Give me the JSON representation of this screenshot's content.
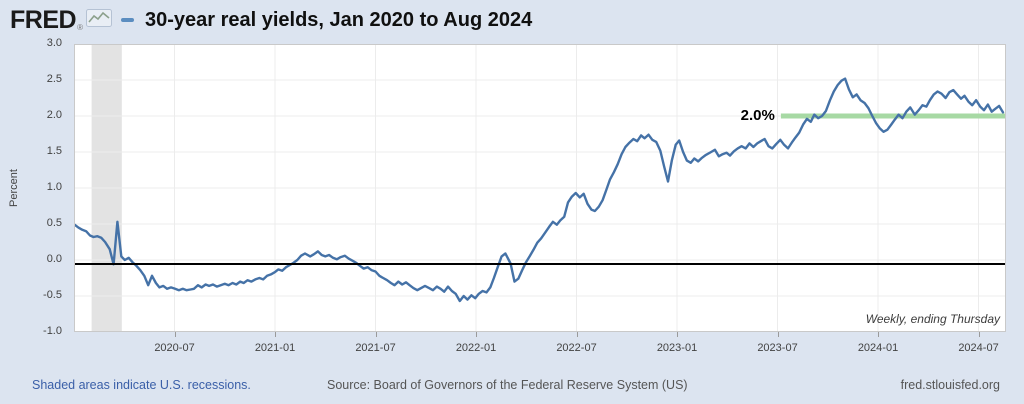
{
  "header": {
    "logo_text": "FRED",
    "logo_reg": "®",
    "legend_dash_color": "#5b8dc0"
  },
  "footer": {
    "left_link": "Shaded areas indicate U.S. recessions.",
    "source": "Source: Board of Governors of the Federal Reserve System (US)",
    "site": "fred.stlouisfed.org"
  },
  "chart_data": {
    "type": "line",
    "title": "30-year real yields, Jan 2020 to Aug 2024",
    "ylabel": "Percent",
    "note": "Weekly, ending Thursday",
    "ylim": [
      -1.0,
      3.0
    ],
    "y_ticks": [
      3.0,
      2.5,
      2.0,
      1.5,
      1.0,
      0.5,
      0.0,
      -0.5,
      -1.0
    ],
    "x_ticks": [
      "2020-07",
      "2021-01",
      "2021-07",
      "2022-01",
      "2022-07",
      "2023-01",
      "2023-07",
      "2024-01",
      "2024-07"
    ],
    "grid": true,
    "line_color": "#4572a7",
    "background_color": "#dce4f0",
    "zero_line": {
      "value": -0.055,
      "color": "#000000"
    },
    "recession_band": {
      "start_month": 1.05,
      "end_month": 2.85,
      "color": "#e3e3e3"
    },
    "annotation": {
      "label": "2.0%",
      "value": 2.0,
      "x_start_month": 42.2,
      "line_color": "#a7d9a4"
    },
    "series": [
      {
        "name": "30-year real yield",
        "points": [
          [
            "2020-01-02",
            0.49
          ],
          [
            "2020-01-09",
            0.45
          ],
          [
            "2020-01-16",
            0.42
          ],
          [
            "2020-01-23",
            0.4
          ],
          [
            "2020-01-30",
            0.34
          ],
          [
            "2020-02-06",
            0.32
          ],
          [
            "2020-02-13",
            0.33
          ],
          [
            "2020-02-20",
            0.31
          ],
          [
            "2020-02-27",
            0.25
          ],
          [
            "2020-03-05",
            0.15
          ],
          [
            "2020-03-12",
            -0.06
          ],
          [
            "2020-03-19",
            0.53
          ],
          [
            "2020-03-26",
            0.05
          ],
          [
            "2020-04-02",
            0.0
          ],
          [
            "2020-04-09",
            0.03
          ],
          [
            "2020-04-16",
            -0.03
          ],
          [
            "2020-04-23",
            -0.08
          ],
          [
            "2020-04-30",
            -0.14
          ],
          [
            "2020-05-07",
            -0.22
          ],
          [
            "2020-05-14",
            -0.35
          ],
          [
            "2020-05-21",
            -0.22
          ],
          [
            "2020-05-28",
            -0.32
          ],
          [
            "2020-06-04",
            -0.38
          ],
          [
            "2020-06-11",
            -0.36
          ],
          [
            "2020-06-18",
            -0.4
          ],
          [
            "2020-06-25",
            -0.38
          ],
          [
            "2020-07-02",
            -0.4
          ],
          [
            "2020-07-09",
            -0.42
          ],
          [
            "2020-07-16",
            -0.4
          ],
          [
            "2020-07-23",
            -0.42
          ],
          [
            "2020-07-30",
            -0.41
          ],
          [
            "2020-08-06",
            -0.4
          ],
          [
            "2020-08-13",
            -0.35
          ],
          [
            "2020-08-20",
            -0.38
          ],
          [
            "2020-08-27",
            -0.34
          ],
          [
            "2020-09-03",
            -0.36
          ],
          [
            "2020-09-10",
            -0.34
          ],
          [
            "2020-09-17",
            -0.37
          ],
          [
            "2020-09-24",
            -0.35
          ],
          [
            "2020-10-01",
            -0.33
          ],
          [
            "2020-10-08",
            -0.35
          ],
          [
            "2020-10-15",
            -0.32
          ],
          [
            "2020-10-22",
            -0.34
          ],
          [
            "2020-10-29",
            -0.3
          ],
          [
            "2020-11-05",
            -0.32
          ],
          [
            "2020-11-12",
            -0.28
          ],
          [
            "2020-11-19",
            -0.3
          ],
          [
            "2020-11-26",
            -0.27
          ],
          [
            "2020-12-03",
            -0.25
          ],
          [
            "2020-12-10",
            -0.27
          ],
          [
            "2020-12-17",
            -0.22
          ],
          [
            "2020-12-24",
            -0.2
          ],
          [
            "2020-12-31",
            -0.17
          ],
          [
            "2021-01-07",
            -0.13
          ],
          [
            "2021-01-14",
            -0.15
          ],
          [
            "2021-01-21",
            -0.1
          ],
          [
            "2021-01-28",
            -0.07
          ],
          [
            "2021-02-04",
            -0.04
          ],
          [
            "2021-02-11",
            0.0
          ],
          [
            "2021-02-18",
            0.06
          ],
          [
            "2021-02-25",
            0.09
          ],
          [
            "2021-03-04",
            0.05
          ],
          [
            "2021-03-11",
            0.08
          ],
          [
            "2021-03-18",
            0.12
          ],
          [
            "2021-03-25",
            0.07
          ],
          [
            "2021-04-01",
            0.05
          ],
          [
            "2021-04-08",
            0.07
          ],
          [
            "2021-04-15",
            0.03
          ],
          [
            "2021-04-22",
            0.01
          ],
          [
            "2021-04-29",
            0.04
          ],
          [
            "2021-05-06",
            0.06
          ],
          [
            "2021-05-13",
            0.02
          ],
          [
            "2021-05-20",
            -0.01
          ],
          [
            "2021-05-27",
            -0.04
          ],
          [
            "2021-06-03",
            -0.08
          ],
          [
            "2021-06-10",
            -0.12
          ],
          [
            "2021-06-17",
            -0.1
          ],
          [
            "2021-06-24",
            -0.14
          ],
          [
            "2021-07-01",
            -0.16
          ],
          [
            "2021-07-08",
            -0.22
          ],
          [
            "2021-07-15",
            -0.25
          ],
          [
            "2021-07-22",
            -0.28
          ],
          [
            "2021-07-29",
            -0.32
          ],
          [
            "2021-08-05",
            -0.35
          ],
          [
            "2021-08-12",
            -0.3
          ],
          [
            "2021-08-19",
            -0.34
          ],
          [
            "2021-08-26",
            -0.31
          ],
          [
            "2021-09-02",
            -0.35
          ],
          [
            "2021-09-09",
            -0.39
          ],
          [
            "2021-09-16",
            -0.42
          ],
          [
            "2021-09-23",
            -0.39
          ],
          [
            "2021-09-30",
            -0.36
          ],
          [
            "2021-10-07",
            -0.39
          ],
          [
            "2021-10-14",
            -0.42
          ],
          [
            "2021-10-21",
            -0.37
          ],
          [
            "2021-10-28",
            -0.4
          ],
          [
            "2021-11-04",
            -0.44
          ],
          [
            "2021-11-11",
            -0.37
          ],
          [
            "2021-11-18",
            -0.43
          ],
          [
            "2021-11-25",
            -0.47
          ],
          [
            "2021-12-02",
            -0.57
          ],
          [
            "2021-12-09",
            -0.5
          ],
          [
            "2021-12-16",
            -0.55
          ],
          [
            "2021-12-23",
            -0.49
          ],
          [
            "2021-12-30",
            -0.53
          ],
          [
            "2022-01-06",
            -0.47
          ],
          [
            "2022-01-13",
            -0.43
          ],
          [
            "2022-01-20",
            -0.45
          ],
          [
            "2022-01-27",
            -0.38
          ],
          [
            "2022-02-03",
            -0.25
          ],
          [
            "2022-02-10",
            -0.1
          ],
          [
            "2022-02-17",
            0.05
          ],
          [
            "2022-02-24",
            0.09
          ],
          [
            "2022-03-03",
            -0.05
          ],
          [
            "2022-03-10",
            -0.3
          ],
          [
            "2022-03-17",
            -0.26
          ],
          [
            "2022-03-24",
            -0.14
          ],
          [
            "2022-03-31",
            -0.03
          ],
          [
            "2022-04-07",
            0.05
          ],
          [
            "2022-04-14",
            0.14
          ],
          [
            "2022-04-21",
            0.24
          ],
          [
            "2022-04-28",
            0.3
          ],
          [
            "2022-05-05",
            0.38
          ],
          [
            "2022-05-12",
            0.46
          ],
          [
            "2022-05-19",
            0.53
          ],
          [
            "2022-05-26",
            0.49
          ],
          [
            "2022-06-02",
            0.55
          ],
          [
            "2022-06-09",
            0.6
          ],
          [
            "2022-06-16",
            0.8
          ],
          [
            "2022-06-23",
            0.88
          ],
          [
            "2022-06-30",
            0.93
          ],
          [
            "2022-07-07",
            0.87
          ],
          [
            "2022-07-14",
            0.92
          ],
          [
            "2022-07-21",
            0.78
          ],
          [
            "2022-07-28",
            0.7
          ],
          [
            "2022-08-04",
            0.68
          ],
          [
            "2022-08-11",
            0.74
          ],
          [
            "2022-08-18",
            0.83
          ],
          [
            "2022-08-25",
            0.98
          ],
          [
            "2022-09-01",
            1.12
          ],
          [
            "2022-09-08",
            1.22
          ],
          [
            "2022-09-15",
            1.33
          ],
          [
            "2022-09-22",
            1.47
          ],
          [
            "2022-09-29",
            1.57
          ],
          [
            "2022-10-06",
            1.63
          ],
          [
            "2022-10-13",
            1.68
          ],
          [
            "2022-10-20",
            1.65
          ],
          [
            "2022-10-27",
            1.73
          ],
          [
            "2022-11-03",
            1.69
          ],
          [
            "2022-11-10",
            1.74
          ],
          [
            "2022-11-17",
            1.67
          ],
          [
            "2022-11-24",
            1.64
          ],
          [
            "2022-12-01",
            1.52
          ],
          [
            "2022-12-08",
            1.3
          ],
          [
            "2022-12-15",
            1.09
          ],
          [
            "2022-12-22",
            1.38
          ],
          [
            "2022-12-29",
            1.6
          ],
          [
            "2023-01-05",
            1.66
          ],
          [
            "2023-01-12",
            1.5
          ],
          [
            "2023-01-19",
            1.38
          ],
          [
            "2023-01-26",
            1.35
          ],
          [
            "2023-02-02",
            1.41
          ],
          [
            "2023-02-09",
            1.37
          ],
          [
            "2023-02-16",
            1.42
          ],
          [
            "2023-02-23",
            1.46
          ],
          [
            "2023-03-02",
            1.5
          ],
          [
            "2023-03-09",
            1.53
          ],
          [
            "2023-03-16",
            1.44
          ],
          [
            "2023-03-23",
            1.47
          ],
          [
            "2023-03-30",
            1.49
          ],
          [
            "2023-04-06",
            1.45
          ],
          [
            "2023-04-13",
            1.51
          ],
          [
            "2023-04-20",
            1.55
          ],
          [
            "2023-04-27",
            1.58
          ],
          [
            "2023-05-04",
            1.55
          ],
          [
            "2023-05-11",
            1.62
          ],
          [
            "2023-05-18",
            1.57
          ],
          [
            "2023-05-25",
            1.62
          ],
          [
            "2023-06-01",
            1.65
          ],
          [
            "2023-06-08",
            1.68
          ],
          [
            "2023-06-15",
            1.58
          ],
          [
            "2023-06-22",
            1.55
          ],
          [
            "2023-06-29",
            1.61
          ],
          [
            "2023-07-06",
            1.67
          ],
          [
            "2023-07-13",
            1.6
          ],
          [
            "2023-07-20",
            1.55
          ],
          [
            "2023-07-27",
            1.63
          ],
          [
            "2023-08-03",
            1.7
          ],
          [
            "2023-08-10",
            1.77
          ],
          [
            "2023-08-17",
            1.88
          ],
          [
            "2023-08-24",
            1.96
          ],
          [
            "2023-08-31",
            1.92
          ],
          [
            "2023-09-07",
            2.02
          ],
          [
            "2023-09-14",
            1.97
          ],
          [
            "2023-09-21",
            2.0
          ],
          [
            "2023-09-28",
            2.07
          ],
          [
            "2023-10-05",
            2.22
          ],
          [
            "2023-10-12",
            2.34
          ],
          [
            "2023-10-19",
            2.43
          ],
          [
            "2023-10-26",
            2.49
          ],
          [
            "2023-11-02",
            2.52
          ],
          [
            "2023-11-09",
            2.37
          ],
          [
            "2023-11-16",
            2.26
          ],
          [
            "2023-11-23",
            2.3
          ],
          [
            "2023-11-30",
            2.22
          ],
          [
            "2023-12-07",
            2.18
          ],
          [
            "2023-12-14",
            2.11
          ],
          [
            "2023-12-21",
            2.0
          ],
          [
            "2023-12-28",
            1.9
          ],
          [
            "2024-01-04",
            1.83
          ],
          [
            "2024-01-11",
            1.78
          ],
          [
            "2024-01-18",
            1.81
          ],
          [
            "2024-01-25",
            1.88
          ],
          [
            "2024-02-01",
            1.95
          ],
          [
            "2024-02-08",
            2.02
          ],
          [
            "2024-02-15",
            1.97
          ],
          [
            "2024-02-22",
            2.06
          ],
          [
            "2024-02-29",
            2.12
          ],
          [
            "2024-03-07",
            2.02
          ],
          [
            "2024-03-14",
            2.08
          ],
          [
            "2024-03-21",
            2.15
          ],
          [
            "2024-03-28",
            2.13
          ],
          [
            "2024-04-04",
            2.22
          ],
          [
            "2024-04-11",
            2.3
          ],
          [
            "2024-04-18",
            2.34
          ],
          [
            "2024-04-25",
            2.31
          ],
          [
            "2024-05-02",
            2.25
          ],
          [
            "2024-05-09",
            2.33
          ],
          [
            "2024-05-16",
            2.36
          ],
          [
            "2024-05-23",
            2.3
          ],
          [
            "2024-05-30",
            2.24
          ],
          [
            "2024-06-06",
            2.28
          ],
          [
            "2024-06-13",
            2.2
          ],
          [
            "2024-06-20",
            2.15
          ],
          [
            "2024-06-27",
            2.22
          ],
          [
            "2024-07-04",
            2.13
          ],
          [
            "2024-07-11",
            2.08
          ],
          [
            "2024-07-18",
            2.16
          ],
          [
            "2024-07-25",
            2.06
          ],
          [
            "2024-08-01",
            2.1
          ],
          [
            "2024-08-08",
            2.14
          ],
          [
            "2024-08-15",
            2.05
          ]
        ]
      }
    ]
  }
}
